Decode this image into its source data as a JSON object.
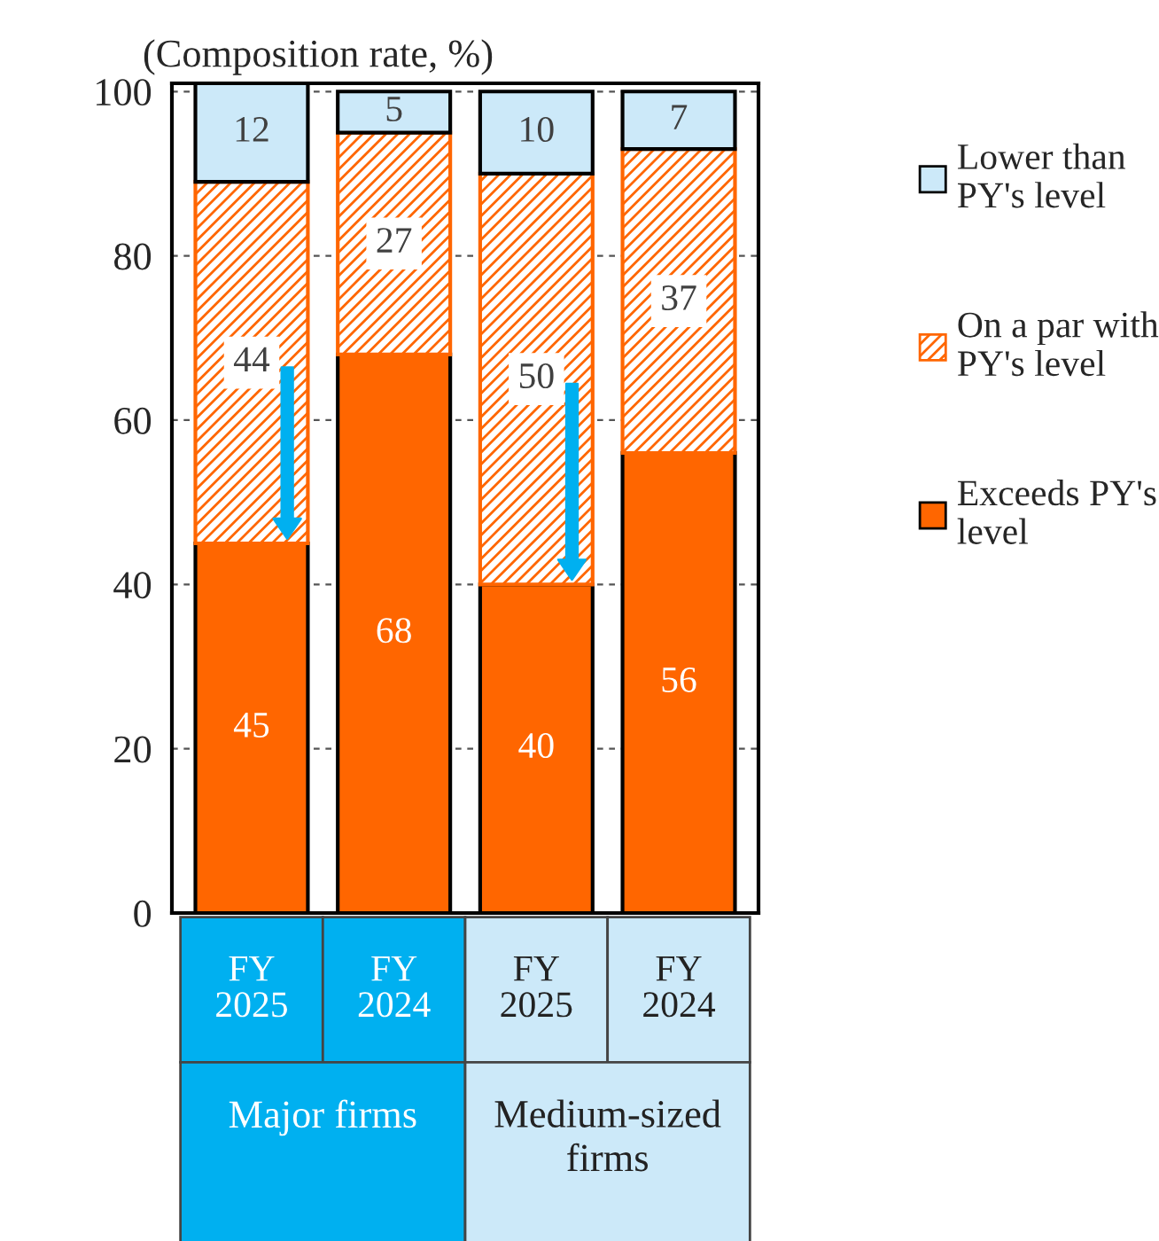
{
  "chart_data": {
    "type": "bar",
    "stacked": true,
    "ylabel": "(Composition rate, %)",
    "categories": [
      "FY\n2025",
      "FY\n2024",
      "FY\n2025",
      "FY\n2024"
    ],
    "series": [
      {
        "name": "Exceeds PY's\nlevel",
        "color": "#ff6600",
        "values": [
          45,
          68,
          40,
          56
        ]
      },
      {
        "name": "On a par with\nPY's level",
        "color": "#ff6600",
        "values": [
          44,
          27,
          50,
          37
        ]
      },
      {
        "name": "Lower than\nPY's level",
        "color": "#cce9f9",
        "values": [
          12,
          5,
          10,
          7
        ]
      }
    ],
    "ylim": [
      0,
      101
    ],
    "yticks": [
      0,
      20,
      40,
      60,
      80,
      100
    ],
    "grid": "y",
    "legend": "right",
    "data_labels": true,
    "annotations": [
      "Major firms",
      "Medium-sized firms"
    ]
  }
}
